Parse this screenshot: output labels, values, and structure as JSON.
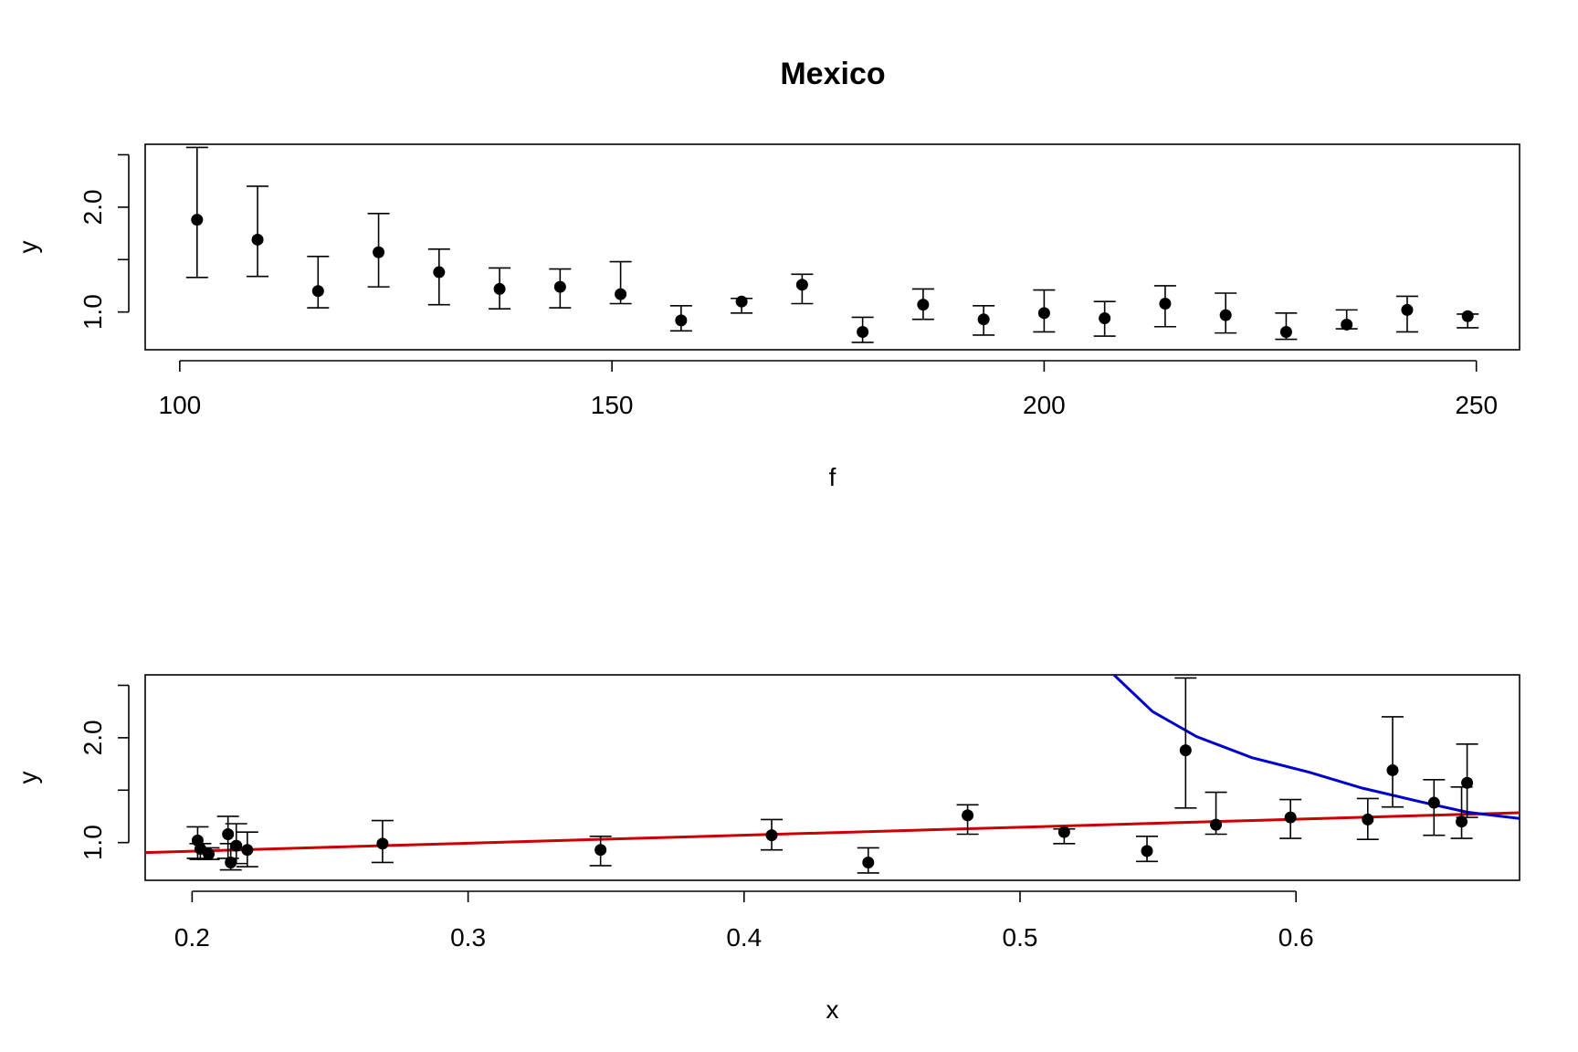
{
  "chart_data": [
    {
      "type": "scatter",
      "title": "Mexico",
      "xlabel": "f",
      "ylabel": "y",
      "xlim": [
        96,
        255
      ],
      "ylim": [
        0.64,
        2.6
      ],
      "xticks": [
        "100",
        "150",
        "200",
        "250"
      ],
      "yticks": [
        "1.0",
        "2.0"
      ],
      "grid": false,
      "points": [
        {
          "x": 102,
          "y": 1.88,
          "lo": 1.33,
          "hi": 2.57
        },
        {
          "x": 109,
          "y": 1.69,
          "lo": 1.34,
          "hi": 2.2
        },
        {
          "x": 116,
          "y": 1.2,
          "lo": 1.04,
          "hi": 1.53
        },
        {
          "x": 123,
          "y": 1.57,
          "lo": 1.24,
          "hi": 1.94
        },
        {
          "x": 130,
          "y": 1.38,
          "lo": 1.07,
          "hi": 1.6
        },
        {
          "x": 137,
          "y": 1.22,
          "lo": 1.03,
          "hi": 1.42
        },
        {
          "x": 144,
          "y": 1.24,
          "lo": 1.04,
          "hi": 1.41
        },
        {
          "x": 151,
          "y": 1.17,
          "lo": 1.08,
          "hi": 1.48
        },
        {
          "x": 158,
          "y": 0.92,
          "lo": 0.82,
          "hi": 1.06
        },
        {
          "x": 165,
          "y": 1.1,
          "lo": 0.99,
          "hi": 1.13
        },
        {
          "x": 172,
          "y": 1.26,
          "lo": 1.08,
          "hi": 1.36
        },
        {
          "x": 179,
          "y": 0.81,
          "lo": 0.71,
          "hi": 0.95
        },
        {
          "x": 186,
          "y": 1.07,
          "lo": 0.93,
          "hi": 1.22
        },
        {
          "x": 193,
          "y": 0.93,
          "lo": 0.78,
          "hi": 1.06
        },
        {
          "x": 200,
          "y": 0.99,
          "lo": 0.81,
          "hi": 1.21
        },
        {
          "x": 207,
          "y": 0.94,
          "lo": 0.77,
          "hi": 1.1
        },
        {
          "x": 214,
          "y": 1.08,
          "lo": 0.86,
          "hi": 1.25
        },
        {
          "x": 221,
          "y": 0.97,
          "lo": 0.8,
          "hi": 1.18
        },
        {
          "x": 228,
          "y": 0.81,
          "lo": 0.74,
          "hi": 0.99
        },
        {
          "x": 235,
          "y": 0.88,
          "lo": 0.84,
          "hi": 1.02
        },
        {
          "x": 242,
          "y": 1.02,
          "lo": 0.81,
          "hi": 1.15
        },
        {
          "x": 249,
          "y": 0.96,
          "lo": 0.85,
          "hi": 0.98
        }
      ]
    },
    {
      "type": "scatter",
      "xlabel": "x",
      "ylabel": "y",
      "xlim": [
        0.183,
        0.681
      ],
      "ylim": [
        0.64,
        2.6
      ],
      "xticks": [
        "0.2",
        "0.3",
        "0.4",
        "0.5",
        "0.6"
      ],
      "yticks": [
        "1.0",
        "2.0"
      ],
      "grid": false,
      "points": [
        {
          "x": 0.202,
          "y": 1.02,
          "lo": 0.85,
          "hi": 1.15
        },
        {
          "x": 0.203,
          "y": 0.94,
          "lo": 0.84,
          "hi": 0.99
        },
        {
          "x": 0.206,
          "y": 0.89,
          "lo": 0.84,
          "hi": 0.95
        },
        {
          "x": 0.213,
          "y": 1.08,
          "lo": 0.85,
          "hi": 1.25
        },
        {
          "x": 0.214,
          "y": 0.81,
          "lo": 0.74,
          "hi": 0.99
        },
        {
          "x": 0.216,
          "y": 0.97,
          "lo": 0.8,
          "hi": 1.18
        },
        {
          "x": 0.22,
          "y": 0.93,
          "lo": 0.77,
          "hi": 1.1
        },
        {
          "x": 0.269,
          "y": 0.99,
          "lo": 0.81,
          "hi": 1.21
        },
        {
          "x": 0.348,
          "y": 0.93,
          "lo": 0.78,
          "hi": 1.06
        },
        {
          "x": 0.41,
          "y": 1.07,
          "lo": 0.93,
          "hi": 1.22
        },
        {
          "x": 0.445,
          "y": 0.81,
          "lo": 0.71,
          "hi": 0.95
        },
        {
          "x": 0.481,
          "y": 1.26,
          "lo": 1.08,
          "hi": 1.36
        },
        {
          "x": 0.516,
          "y": 1.1,
          "lo": 0.99,
          "hi": 1.13
        },
        {
          "x": 0.546,
          "y": 0.92,
          "lo": 0.82,
          "hi": 1.06
        },
        {
          "x": 0.56,
          "y": 1.88,
          "lo": 1.33,
          "hi": 2.57
        },
        {
          "x": 0.571,
          "y": 1.17,
          "lo": 1.08,
          "hi": 1.48
        },
        {
          "x": 0.598,
          "y": 1.24,
          "lo": 1.04,
          "hi": 1.41
        },
        {
          "x": 0.626,
          "y": 1.22,
          "lo": 1.03,
          "hi": 1.42
        },
        {
          "x": 0.635,
          "y": 1.69,
          "lo": 1.34,
          "hi": 2.2
        },
        {
          "x": 0.65,
          "y": 1.38,
          "lo": 1.07,
          "hi": 1.6
        },
        {
          "x": 0.66,
          "y": 1.2,
          "lo": 1.04,
          "hi": 1.53
        },
        {
          "x": 0.662,
          "y": 1.57,
          "lo": 1.24,
          "hi": 1.94
        }
      ],
      "lines": [
        {
          "color": "#cc0000",
          "x": [
            0.183,
            0.681
          ],
          "y": [
            0.905,
            1.285
          ]
        },
        {
          "color": "#0000cc",
          "x": [
            0.534,
            0.548,
            0.564,
            0.584,
            0.605,
            0.624,
            0.645,
            0.662,
            0.681
          ],
          "y": [
            2.6,
            2.25,
            2.01,
            1.81,
            1.67,
            1.52,
            1.39,
            1.29,
            1.23
          ]
        }
      ]
    }
  ]
}
